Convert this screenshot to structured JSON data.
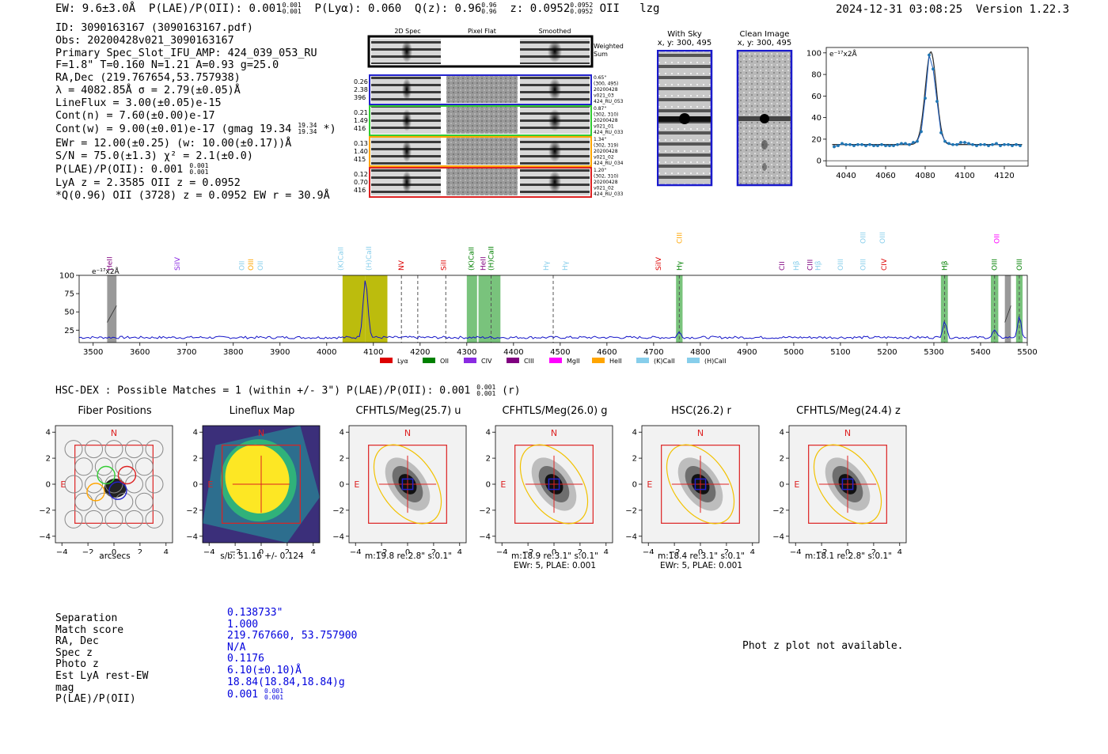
{
  "header": {
    "ew": "EW: 9.6±3.0Å",
    "plae_label": "P(LAE)/P(OII): 0.001",
    "plae_hi": "0.001",
    "plae_lo": "0.001",
    "plya": "P(Lyα): 0.060",
    "qz_label": "Q(z): 0.96",
    "qz_hi": "0.96",
    "qz_lo": "0.96",
    "z_label": "z: 0.0952",
    "z_hi": "0.0952",
    "z_lo": "0.0952",
    "line": "OII",
    "tag": "lzg",
    "timestamp": "2024-12-31 03:08:25",
    "version": "Version 1.22.3"
  },
  "info": {
    "lines": [
      "ID: 3090163167 (3090163167.pdf)",
      "Obs: 20200428v021_3090163167",
      "Primary Spec_Slot_IFU_AMP: 424_039_053_RU",
      "F=1.8\"  T=0.160  N=1.21  A=0.93  g=25.0",
      "RA,Dec (219.767654,53.757938)",
      "λ = 4082.85Å  σ = 2.79(±0.05)Å",
      "LineFlux = 3.00(±0.05)e-15",
      "Cont(n) = 7.60(±0.00)e-17"
    ],
    "contw": "Cont(w) = 9.00(±0.01)e-17 (gmag 19.34",
    "contw_hi": "19.34",
    "contw_lo": "19.34",
    "contw_end": "*)",
    "lines2": [
      "EWr = 12.00(±0.25) (w: 10.00(±0.17))Å",
      "S/N = 75.0(±1.3)  χ² = 2.1(±0.0)"
    ],
    "plae": "P(LAE)/P(OII): 0.001",
    "plae_hi": "0.001",
    "plae_lo": "0.001",
    "lines3": [
      "LyA z = 2.3585  OII z = 0.0952",
      "*Q(0.96) OII (3728) z = 0.0952  EW r = 30.9Å"
    ]
  },
  "cutouts": {
    "col_2d": "2D Spec",
    "col_flat": "Pixel Flat",
    "col_smooth": "Smoothed",
    "weighted": [
      "Weighted",
      "Sum"
    ],
    "rows": [
      {
        "left": [
          "0.26",
          "2.38",
          "396"
        ],
        "right": [
          "0.65\"",
          "(300, 495)",
          "20200428",
          "v021_03",
          "424_RU_053"
        ],
        "color": "#2222cc"
      },
      {
        "left": [
          "0.21",
          "1.49",
          "416"
        ],
        "right": [
          "0.87\"",
          "(302, 310)",
          "20200428",
          "v021_01",
          "424_RU_033"
        ],
        "color": "#33cc33"
      },
      {
        "left": [
          "0.13",
          "1.40",
          "415"
        ],
        "right": [
          "1.34\"",
          "(302, 319)",
          "20200428",
          "v021_02",
          "424_RU_034"
        ],
        "color": "#ffa500"
      },
      {
        "left": [
          "0.12",
          "0.70",
          "416"
        ],
        "right": [
          "1.20\"",
          "(302, 310)",
          "20200428",
          "v021_02",
          "424_RU_033"
        ],
        "color": "#dd2222"
      }
    ]
  },
  "sky": {
    "with_sky": [
      "With Sky",
      "x, y: 300, 495"
    ],
    "clean": [
      "Clean Image",
      "x, y: 300, 495"
    ]
  },
  "zoom_chart": {
    "units": "e⁻¹⁷x2Å",
    "xticks": [
      "4040",
      "4060",
      "4080",
      "4100",
      "4120"
    ],
    "yticks": [
      "100",
      "80",
      "60",
      "40",
      "20",
      "0"
    ]
  },
  "spectrum": {
    "units": "e⁻¹⁷x2Å",
    "xticks": [
      "3500",
      "3600",
      "3700",
      "3800",
      "3900",
      "4000",
      "4100",
      "4200",
      "4300",
      "4400",
      "4500",
      "4600",
      "4700",
      "4800",
      "4900",
      "5000",
      "5100",
      "5200",
      "5300",
      "5400",
      "5500"
    ],
    "yticks": [
      "100",
      "75",
      "50",
      "25"
    ],
    "lines": [
      {
        "label": "HeII",
        "x": 3535,
        "row": 0,
        "color": "#800080"
      },
      {
        "label": "SiIV",
        "x": 3680,
        "row": 0,
        "color": "#8a2be2"
      },
      {
        "label": "OII",
        "x": 3818,
        "row": 0,
        "color": "#87ceeb"
      },
      {
        "label": "OIII",
        "x": 3838,
        "row": 0,
        "color": "#ffa500"
      },
      {
        "label": "OII",
        "x": 3858,
        "row": 0,
        "color": "#87ceeb"
      },
      {
        "label": "(K)CaII",
        "x": 4030,
        "row": 0,
        "color": "#87ceeb"
      },
      {
        "label": "(H)CaII",
        "x": 4090,
        "row": 0,
        "color": "#87ceeb"
      },
      {
        "label": "NV",
        "x": 4160,
        "row": 0,
        "color": "#dd0000"
      },
      {
        "label": "SiII",
        "x": 4250,
        "row": 0,
        "color": "#dd0000"
      },
      {
        "label": "(K)CaII",
        "x": 4310,
        "row": 0,
        "color": "#008000"
      },
      {
        "label": "HeII",
        "x": 4335,
        "row": 0,
        "color": "#800080"
      },
      {
        "label": "(H)CaII",
        "x": 4352,
        "row": 0,
        "color": "#008000"
      },
      {
        "label": "Hγ",
        "x": 4470,
        "row": 0,
        "color": "#87ceeb"
      },
      {
        "label": "Hγ",
        "x": 4510,
        "row": 0,
        "color": "#87ceeb"
      },
      {
        "label": "SiIV",
        "x": 4710,
        "row": 0,
        "color": "#dd0000"
      },
      {
        "label": "CIII",
        "x": 4755,
        "row": 1,
        "color": "#ffa500"
      },
      {
        "label": "Hγ",
        "x": 4755,
        "row": 0,
        "color": "#008000"
      },
      {
        "label": "CII",
        "x": 4975,
        "row": 0,
        "color": "#800080"
      },
      {
        "label": "Hβ",
        "x": 5005,
        "row": 0,
        "color": "#87ceeb"
      },
      {
        "label": "CIII",
        "x": 5035,
        "row": 0,
        "color": "#800080"
      },
      {
        "label": "Hβ",
        "x": 5052,
        "row": 0,
        "color": "#87ceeb"
      },
      {
        "label": "OIII",
        "x": 5100,
        "row": 0,
        "color": "#87ceeb"
      },
      {
        "label": "OIII",
        "x": 5148,
        "row": 0,
        "color": "#87ceeb"
      },
      {
        "label": "OIII",
        "x": 5148,
        "row": 1,
        "color": "#87ceeb"
      },
      {
        "label": "OIII",
        "x": 5190,
        "row": 1,
        "color": "#87ceeb"
      },
      {
        "label": "CIV",
        "x": 5193,
        "row": 0,
        "color": "#dd0000"
      },
      {
        "label": "Hβ",
        "x": 5323,
        "row": 0,
        "color": "#008000"
      },
      {
        "label": "OII",
        "x": 5435,
        "row": 1,
        "color": "#ff00ff"
      },
      {
        "label": "OIII",
        "x": 5430,
        "row": 0,
        "color": "#008000"
      },
      {
        "label": "OIII",
        "x": 5483,
        "row": 0,
        "color": "#008000"
      }
    ],
    "legend": [
      {
        "label": "Lyα",
        "color": "#dd0000"
      },
      {
        "label": "OII",
        "color": "#008000"
      },
      {
        "label": "CIV",
        "color": "#8a2be2"
      },
      {
        "label": "CIII",
        "color": "#800080"
      },
      {
        "label": "MgII",
        "color": "#ff00ff"
      },
      {
        "label": "HeII",
        "color": "#ffa500"
      },
      {
        "label": "(K)CaII",
        "color": "#87ceeb"
      },
      {
        "label": "(H)CaII",
        "color": "#87ceeb"
      }
    ]
  },
  "hsc": {
    "title": "HSC-DEX : Possible Matches = 1 (within +/- 3\")  P(LAE)/P(OII): 0.001",
    "hi": "0.001",
    "lo": "0.001",
    "band": "(r)"
  },
  "panels": [
    {
      "title": "Fiber Positions",
      "foot": [
        "arcsecs"
      ]
    },
    {
      "title": "Lineflux Map",
      "foot": [
        "s/b: 51.16 +/- 0.124"
      ]
    },
    {
      "title": "CFHTLS/Meg(25.7) u",
      "foot": [
        "m:19.8  re:2.8\"  s:0.1\""
      ]
    },
    {
      "title": "CFHTLS/Meg(26.0) g",
      "foot": [
        "m:18.9  re:3.1\"  s:0.1\"",
        "EWr: 5, PLAE: 0.001"
      ]
    },
    {
      "title": "HSC(26.2) r",
      "foot": [
        "m:18.4  re:3.1\"  s:0.1\"",
        "EWr: 5, PLAE: 0.001"
      ]
    },
    {
      "title": "CFHTLS/Meg(24.4) z",
      "foot": [
        "m:18.1  re:2.8\"  s:0.1\""
      ]
    }
  ],
  "panel_axis": {
    "ticks": [
      "−4",
      "−2",
      "0",
      "2",
      "4"
    ],
    "yticks": [
      "4",
      "2",
      "0",
      "−2",
      "−4"
    ],
    "north": "N",
    "east": "E"
  },
  "match": {
    "labels": [
      "Separation",
      "Match score",
      "RA, Dec",
      "Spec z",
      "Photo z",
      "Est LyA rest-EW",
      "mag",
      "P(LAE)/P(OII)"
    ],
    "values": [
      "0.138733\"",
      "1.000",
      "219.767660, 53.757900",
      "N/A",
      "0.1176",
      "6.10(±0.10)Å",
      "18.84(18.84,18.84)g"
    ],
    "plae": "0.001",
    "plae_hi": "0.001",
    "plae_lo": "0.001"
  },
  "photz": "Phot z plot not available.",
  "chart_data": [
    {
      "type": "scatter",
      "title": "",
      "xlabel": "",
      "ylabel": "e-17 x2Å",
      "xlim": [
        4030,
        4132
      ],
      "ylim": [
        -5,
        105
      ],
      "x": [
        4034,
        4036,
        4038,
        4040,
        4042,
        4044,
        4046,
        4048,
        4050,
        4052,
        4054,
        4056,
        4058,
        4060,
        4062,
        4064,
        4066,
        4068,
        4070,
        4072,
        4074,
        4076,
        4078,
        4080,
        4082,
        4084,
        4086,
        4088,
        4090,
        4092,
        4094,
        4096,
        4098,
        4100,
        4102,
        4104,
        4106,
        4108,
        4110,
        4112,
        4114,
        4116,
        4118,
        4120,
        4122,
        4124,
        4126,
        4128
      ],
      "y": [
        13,
        14,
        16,
        15,
        15,
        14,
        15,
        15,
        14,
        15,
        14,
        14,
        15,
        14,
        14,
        14,
        15,
        16,
        16,
        15,
        17,
        18,
        27,
        58,
        98,
        85,
        55,
        26,
        18,
        16,
        15,
        15,
        17,
        17,
        16,
        15,
        14,
        15,
        15,
        14,
        15,
        16,
        14,
        15,
        15,
        14,
        15,
        14
      ],
      "fit": "gaussian peak ~101 at 4082.85"
    },
    {
      "type": "line",
      "title": "",
      "xlabel": "",
      "ylabel": "e-17 x2Å",
      "xlim": [
        3470,
        5500
      ],
      "ylim": [
        8,
        100
      ],
      "series": [
        {
          "name": "spectrum",
          "note": "continuum ~15 with emission peak ~95 at 4083, small peaks at 4755, 5323, 5430, 5483"
        }
      ],
      "peaks": [
        [
          4083,
          95
        ],
        [
          4755,
          22
        ],
        [
          5323,
          38
        ],
        [
          5430,
          25
        ],
        [
          5483,
          42
        ]
      ],
      "continuum": 15
    }
  ]
}
